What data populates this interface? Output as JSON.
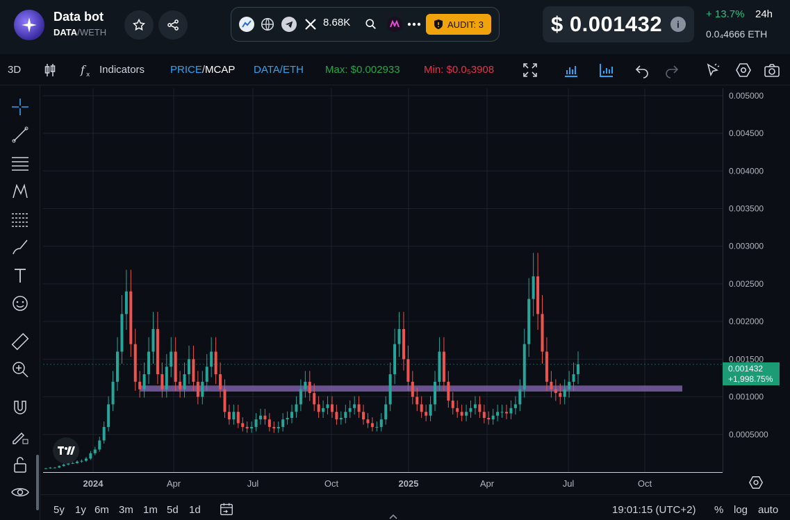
{
  "header": {
    "title": "Data bot",
    "pair_base": "DATA",
    "pair_sep": "/",
    "pair_quote": "WETH",
    "followers": "8.68K",
    "audit_label": "AUDIT: 3",
    "price": "$ 0.001432",
    "change": "+ 13.7%",
    "period": "24h",
    "eth_price": "0.0₄4666 ETH"
  },
  "toolbar": {
    "view_3d": "3D",
    "indicators": "Indicators",
    "price_label": "PRICE",
    "mcap_label": "MCAP",
    "slash": "/",
    "data_eth": "DATA/ETH",
    "max": "Max: $0.002933",
    "min": "Min: $0.0₅3908"
  },
  "colors": {
    "up": "#26a69a",
    "down": "#ef5350",
    "accent_green": "#26c281",
    "accent_red": "#e5334b",
    "link_blue": "#2ea3f2",
    "support_band": "#7b5ea7"
  },
  "chart_data": {
    "type": "candlestick",
    "ylim": [
      0,
      0.0051
    ],
    "y_ticks": [
      "0.005000",
      "0.004500",
      "0.004000",
      "0.003500",
      "0.003000",
      "0.002500",
      "0.002000",
      "0.001500",
      "0.001000",
      "0.0005000"
    ],
    "x_ticks": [
      "2024",
      "Apr",
      "Jul",
      "Oct",
      "2025",
      "Apr",
      "Jul",
      "Oct"
    ],
    "support_band": [
      0.00107,
      0.00115
    ],
    "last_price": "0.001432",
    "last_change": "+1,998.75%",
    "series_closes": [
      5e-05,
      6e-05,
      6e-05,
      8e-05,
      0.0001,
      0.00012,
      0.00012,
      0.00014,
      0.00015,
      0.00018,
      0.00025,
      0.0003,
      0.00042,
      0.0006,
      0.0009,
      0.0012,
      0.0016,
      0.0021,
      0.0024,
      0.0017,
      0.0012,
      0.0011,
      0.0013,
      0.0016,
      0.0019,
      0.0013,
      0.0011,
      0.0014,
      0.0016,
      0.0012,
      0.0011,
      0.0013,
      0.0015,
      0.0012,
      0.001,
      0.0012,
      0.0014,
      0.0016,
      0.0013,
      0.0011,
      0.0008,
      0.0007,
      0.0008,
      0.00065,
      0.0006,
      0.00058,
      0.0006,
      0.0007,
      0.00075,
      0.0007,
      0.0006,
      0.00058,
      0.0006,
      0.0007,
      0.00072,
      0.0008,
      0.0009,
      0.0011,
      0.0012,
      0.00105,
      0.0009,
      0.0008,
      0.00085,
      0.0009,
      0.0008,
      0.0007,
      0.00072,
      0.0008,
      0.00085,
      0.0009,
      0.0008,
      0.0007,
      0.00065,
      0.0006,
      0.0006,
      0.0007,
      0.0009,
      0.0013,
      0.0017,
      0.0019,
      0.0015,
      0.0012,
      0.001,
      0.0009,
      0.0008,
      0.00075,
      0.0009,
      0.0012,
      0.0016,
      0.0012,
      0.00095,
      0.00085,
      0.0008,
      0.00075,
      0.0008,
      0.00085,
      0.0009,
      0.0008,
      0.00072,
      0.0007,
      0.00075,
      0.0008,
      0.0008,
      0.00078,
      0.00085,
      0.0009,
      0.0011,
      0.0017,
      0.0023,
      0.0026,
      0.0021,
      0.0016,
      0.0012,
      0.0011,
      0.00105,
      0.001,
      0.0011,
      0.0012,
      0.0013,
      0.001432
    ]
  },
  "bottom": {
    "ranges": [
      "5y",
      "1y",
      "6m",
      "3m",
      "1m",
      "5d",
      "1d"
    ],
    "time": "19:01:15 (UTC+2)",
    "percent": "%",
    "log": "log",
    "auto": "auto"
  }
}
